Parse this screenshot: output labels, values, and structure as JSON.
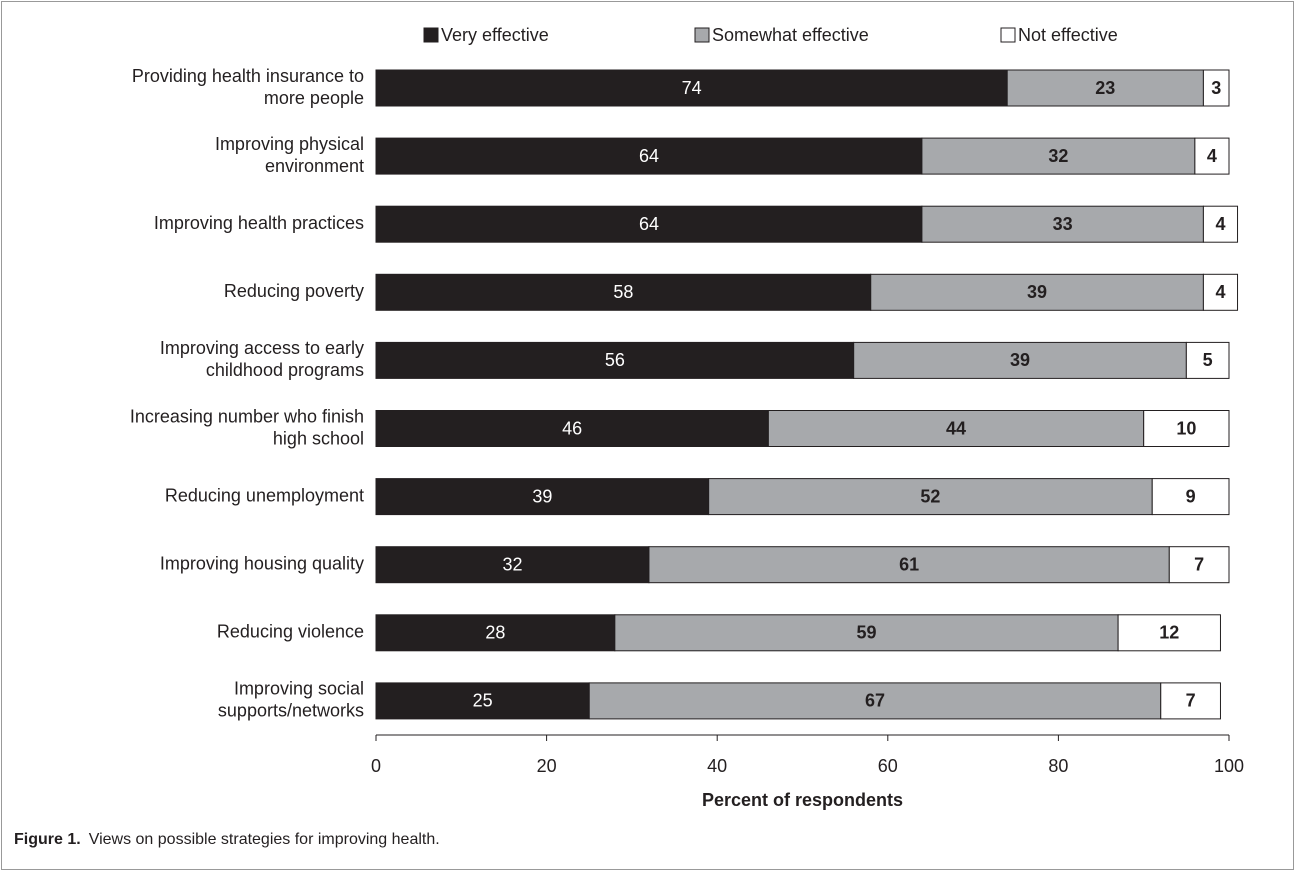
{
  "chart_data": {
    "type": "stacked-bar-horizontal",
    "categories": [
      [
        "Providing health insurance to",
        "more people"
      ],
      [
        "Improving physical",
        "environment"
      ],
      [
        "Improving health practices"
      ],
      [
        "Reducing poverty"
      ],
      [
        "Improving access to early",
        "childhood programs"
      ],
      [
        "Increasing number who finish",
        "high school"
      ],
      [
        "Reducing unemployment"
      ],
      [
        "Improving housing quality"
      ],
      [
        "Reducing violence"
      ],
      [
        "Improving social",
        "supports/networks"
      ]
    ],
    "series": [
      {
        "name": "Very effective",
        "color": "#231f20",
        "values": [
          74,
          64,
          64,
          58,
          56,
          46,
          39,
          32,
          28,
          25
        ]
      },
      {
        "name": "Somewhat effective",
        "color": "#a7a9ac",
        "values": [
          23,
          32,
          33,
          39,
          39,
          44,
          52,
          61,
          59,
          67
        ]
      },
      {
        "name": "Not effective",
        "color": "#ffffff",
        "values": [
          3,
          4,
          4,
          4,
          5,
          10,
          9,
          7,
          12,
          7
        ]
      }
    ],
    "xlim": [
      0,
      100
    ],
    "xticks": [
      0,
      20,
      40,
      60,
      80,
      100
    ],
    "xlabel": "Percent of respondents",
    "legend": "top",
    "caption": {
      "label": "Figure 1.",
      "text": "Views on possible strategies for improving health."
    }
  }
}
